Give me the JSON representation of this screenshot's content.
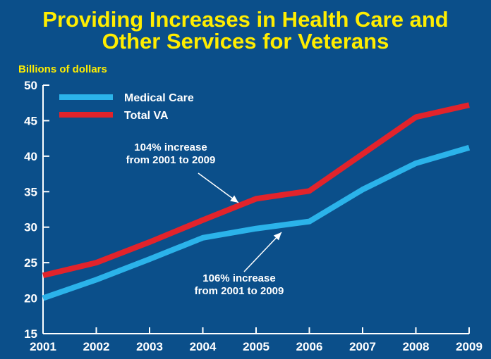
{
  "chart_data": {
    "type": "line",
    "title": [
      "Providing Increases in Health Care and",
      "Other Services for Veterans"
    ],
    "ylabel": "Billions of dollars",
    "xlabel": "",
    "ylim": [
      15,
      50
    ],
    "yticks": [
      "15",
      "20",
      "25",
      "30",
      "35",
      "40",
      "45",
      "50"
    ],
    "x": [
      "2001",
      "2002",
      "2003",
      "2004",
      "2005",
      "2006",
      "2007",
      "2008",
      "2009"
    ],
    "series": [
      {
        "name": "Medical Care",
        "color": "#2bb3ea",
        "values": [
          20.0,
          22.6,
          25.5,
          28.5,
          29.8,
          30.8,
          35.3,
          39.0,
          41.2
        ]
      },
      {
        "name": "Total VA",
        "color": "#e2232b",
        "values": [
          23.2,
          25.0,
          27.9,
          31.0,
          34.0,
          35.1,
          40.3,
          45.5,
          47.2
        ]
      }
    ],
    "annotations": [
      {
        "lines": [
          "104% increase",
          "from 2001 to 2009"
        ],
        "series": "Total VA"
      },
      {
        "lines": [
          "106% increase",
          "from 2001 to 2009"
        ],
        "series": "Medical Care"
      }
    ],
    "legend_position": "top-left",
    "grid": false
  },
  "colors": {
    "background": "#0b4f8a",
    "title": "#ffed00",
    "axis": "#ffffff"
  }
}
